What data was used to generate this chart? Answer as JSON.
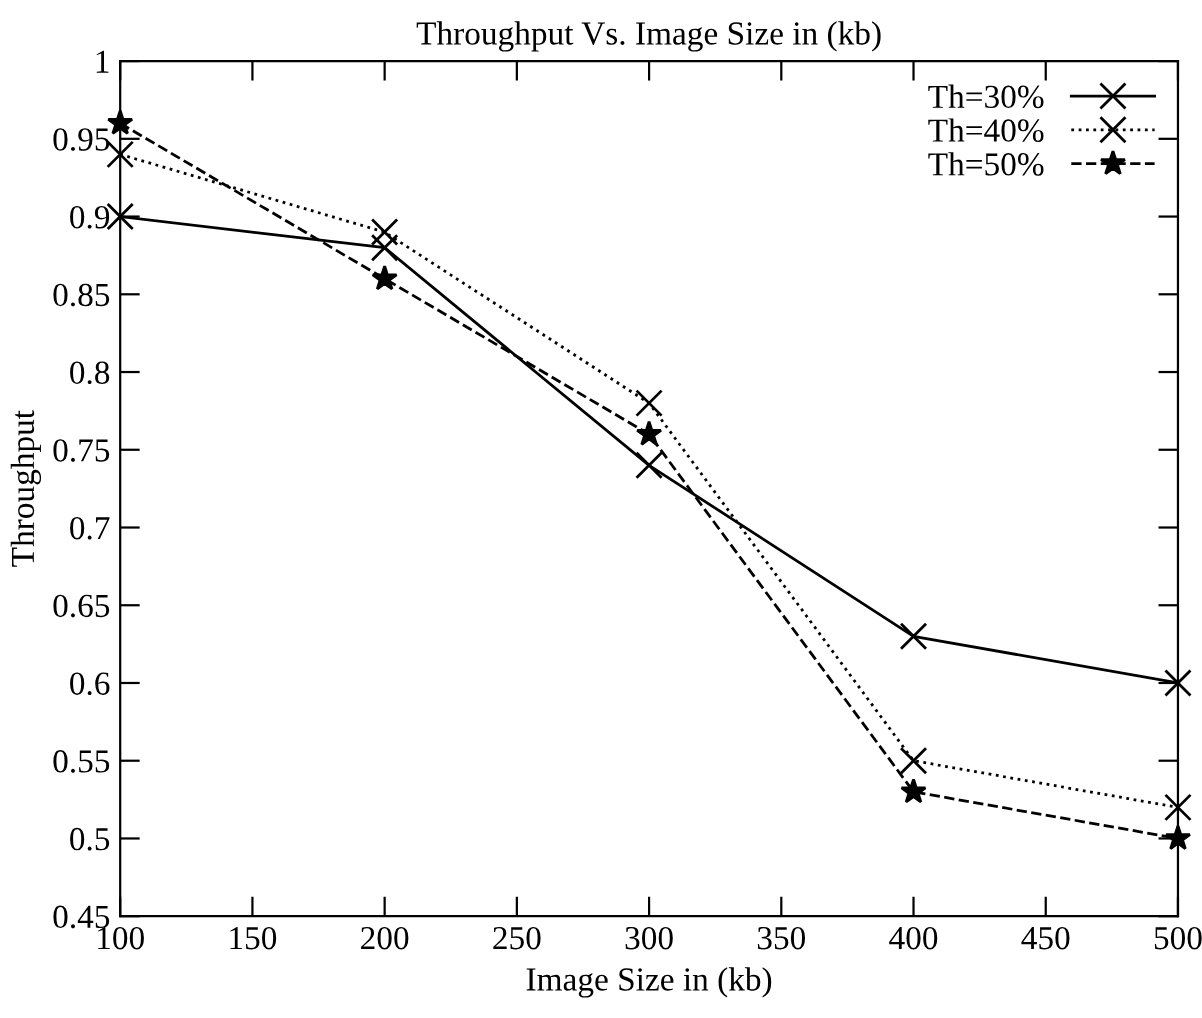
{
  "chart_data": {
    "type": "line",
    "title": "Throughput Vs. Image Size in (kb)",
    "xlabel": "Image Size in (kb)",
    "ylabel": "Throughput",
    "x": [
      100,
      200,
      300,
      400,
      500
    ],
    "series": [
      {
        "name": "Th=30%",
        "color": "#000000",
        "marker": "cross",
        "line_style": "solid",
        "values": [
          0.9,
          0.88,
          0.74,
          0.63,
          0.6
        ]
      },
      {
        "name": "Th=40%",
        "color": "#000000",
        "marker": "cross",
        "line_style": "dotted",
        "values": [
          0.94,
          0.89,
          0.78,
          0.55,
          0.52
        ]
      },
      {
        "name": "Th=50%",
        "color": "#000000",
        "marker": "star",
        "line_style": "dashed",
        "values": [
          0.96,
          0.86,
          0.76,
          0.53,
          0.5
        ]
      }
    ],
    "xlim": [
      100,
      500
    ],
    "xticks": [
      100,
      150,
      200,
      250,
      300,
      350,
      400,
      450,
      500
    ],
    "ylim": [
      0.45,
      1
    ],
    "yticks": [
      0.45,
      0.5,
      0.55,
      0.6,
      0.65,
      0.7,
      0.75,
      0.8,
      0.85,
      0.9,
      0.95,
      1
    ],
    "grid": false,
    "legend": "top right"
  }
}
